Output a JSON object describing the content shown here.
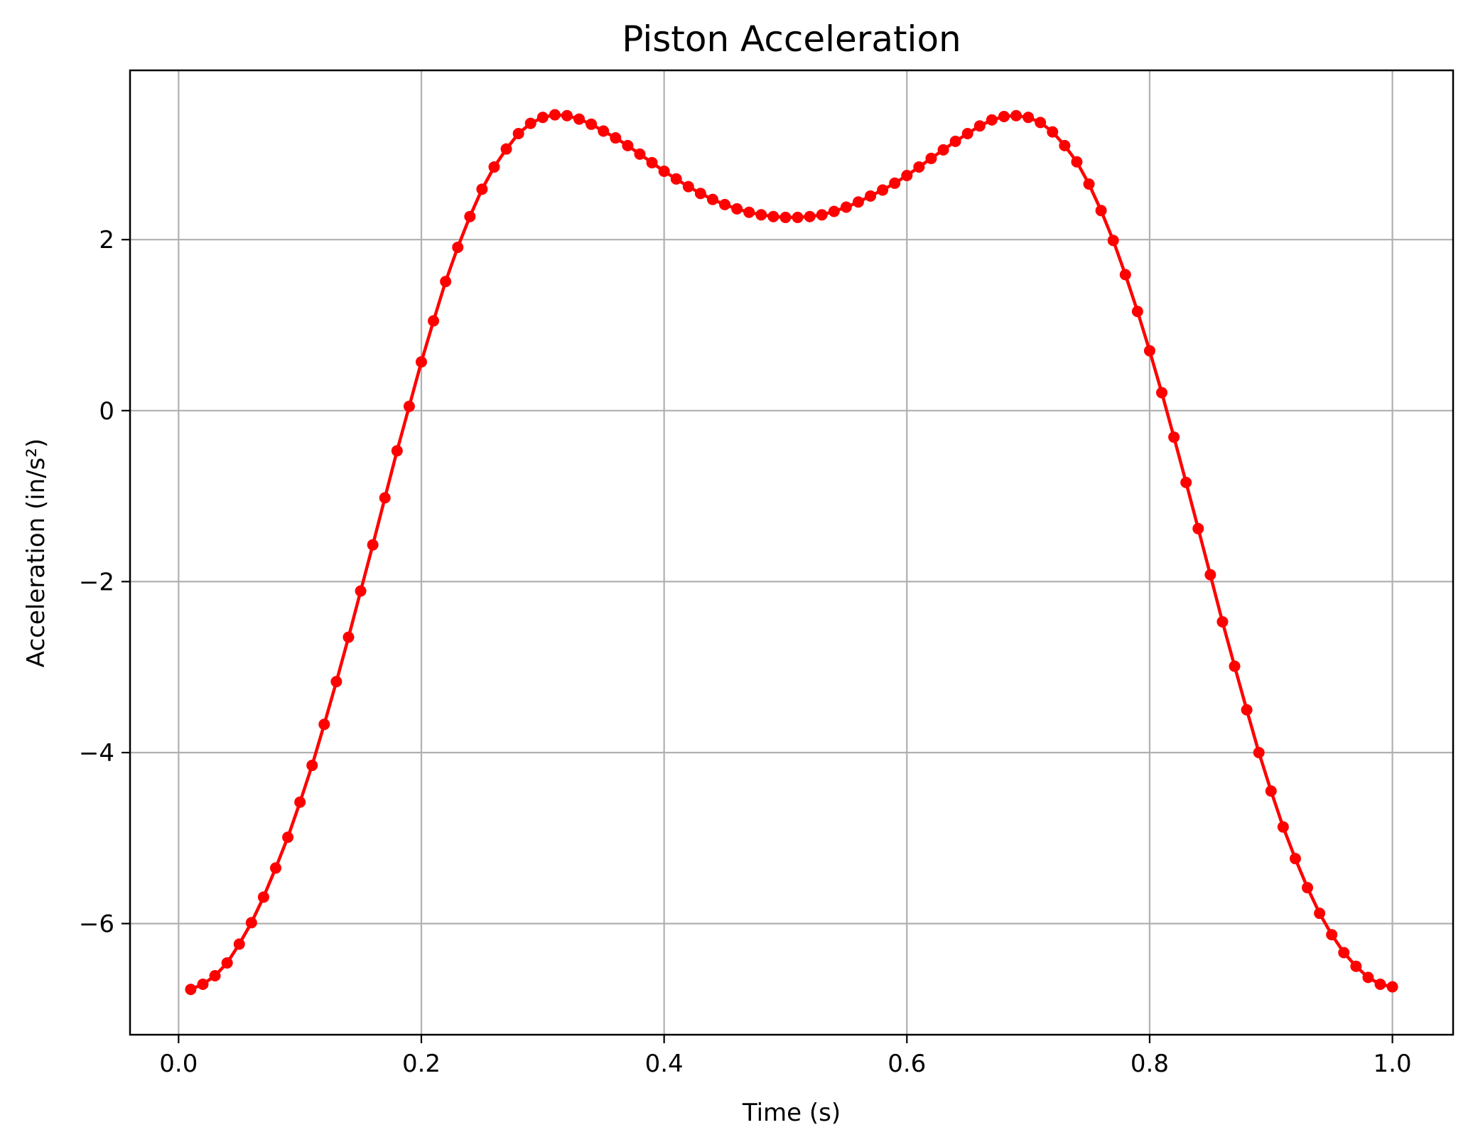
{
  "chart_data": {
    "type": "line",
    "title": "Piston Acceleration",
    "xlabel": "Time (s)",
    "ylabel": "Acceleration (in/s²)",
    "xlim": [
      -0.04,
      1.05
    ],
    "ylim": [
      -7.3,
      3.98
    ],
    "xticks": [
      0.0,
      0.2,
      0.4,
      0.6,
      0.8,
      1.0
    ],
    "xtick_labels": [
      "0.0",
      "0.2",
      "0.4",
      "0.6",
      "0.8",
      "1.0"
    ],
    "yticks": [
      -6,
      -4,
      -2,
      0,
      2
    ],
    "ytick_labels": [
      "−6",
      "−4",
      "−2",
      "0",
      "2"
    ],
    "grid": true,
    "series": [
      {
        "color": "#ff0000",
        "marker": "circle",
        "x": [
          0.01,
          0.02,
          0.03,
          0.04,
          0.05,
          0.06,
          0.07,
          0.08,
          0.09,
          0.1,
          0.11,
          0.12,
          0.13,
          0.14,
          0.15,
          0.16,
          0.17,
          0.18,
          0.19,
          0.2,
          0.21,
          0.22,
          0.23,
          0.24,
          0.25,
          0.26,
          0.27,
          0.28,
          0.29,
          0.3,
          0.31,
          0.32,
          0.33,
          0.34,
          0.35,
          0.36,
          0.37,
          0.38,
          0.39,
          0.4,
          0.41,
          0.42,
          0.43,
          0.44,
          0.45,
          0.46,
          0.47,
          0.48,
          0.49,
          0.5,
          0.51,
          0.52,
          0.53,
          0.54,
          0.55,
          0.56,
          0.57,
          0.58,
          0.59,
          0.6,
          0.61,
          0.62,
          0.63,
          0.64,
          0.65,
          0.66,
          0.67,
          0.68,
          0.69,
          0.7,
          0.71,
          0.72,
          0.73,
          0.74,
          0.75,
          0.76,
          0.77,
          0.78,
          0.79,
          0.8,
          0.81,
          0.82,
          0.83,
          0.84,
          0.85,
          0.86,
          0.87,
          0.88,
          0.89,
          0.9,
          0.91,
          0.92,
          0.93,
          0.94,
          0.95,
          0.96,
          0.97,
          0.98,
          0.99,
          1.0
        ],
        "y": [
          -6.77,
          -6.71,
          -6.61,
          -6.46,
          -6.24,
          -5.99,
          -5.69,
          -5.35,
          -4.99,
          -4.58,
          -4.15,
          -3.67,
          -3.17,
          -2.65,
          -2.11,
          -1.57,
          -1.02,
          -0.47,
          0.05,
          0.57,
          1.05,
          1.51,
          1.91,
          2.27,
          2.59,
          2.85,
          3.06,
          3.24,
          3.36,
          3.43,
          3.46,
          3.45,
          3.41,
          3.35,
          3.27,
          3.19,
          3.1,
          3.0,
          2.9,
          2.8,
          2.71,
          2.62,
          2.54,
          2.47,
          2.41,
          2.36,
          2.32,
          2.29,
          2.27,
          2.26,
          2.26,
          2.27,
          2.29,
          2.33,
          2.38,
          2.44,
          2.51,
          2.58,
          2.66,
          2.75,
          2.85,
          2.95,
          3.05,
          3.15,
          3.24,
          3.33,
          3.4,
          3.44,
          3.45,
          3.43,
          3.37,
          3.26,
          3.1,
          2.91,
          2.65,
          2.34,
          1.99,
          1.59,
          1.16,
          0.7,
          0.21,
          -0.31,
          -0.84,
          -1.38,
          -1.92,
          -2.47,
          -2.99,
          -3.5,
          -4.0,
          -4.45,
          -4.87,
          -5.24,
          -5.58,
          -5.88,
          -6.13,
          -6.34,
          -6.5,
          -6.63,
          -6.71,
          -6.74
        ]
      }
    ]
  }
}
